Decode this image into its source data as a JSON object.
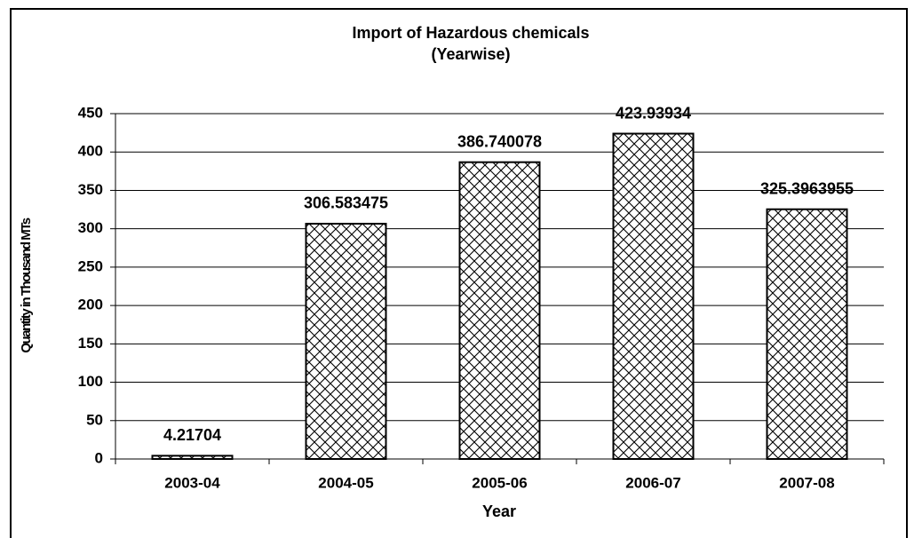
{
  "chart_data": {
    "type": "bar",
    "title": "Import of Hazardous chemicals",
    "subtitle": "(Yearwise)",
    "x_label": "Year",
    "y_label": "Quantity in Thousand MTs",
    "categories": [
      "2003-04",
      "2004-05",
      "2005-06",
      "2006-07",
      "2007-08"
    ],
    "values": [
      4.21704,
      306.583475,
      386.740078,
      423.93934,
      325.3963955
    ],
    "color": "#000000",
    "ylim": [
      0,
      450
    ],
    "yticks": [
      0,
      50,
      100,
      150,
      200,
      250,
      300,
      350,
      400,
      450
    ],
    "grid": true
  }
}
